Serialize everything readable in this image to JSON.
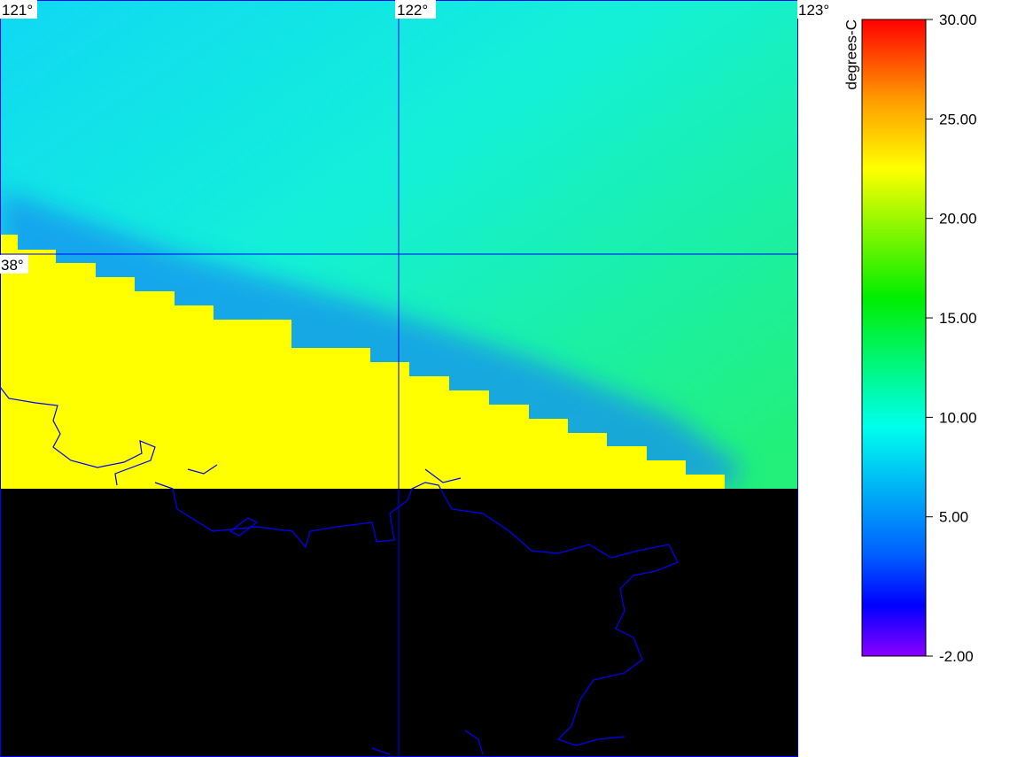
{
  "map": {
    "grid": {
      "lon_labels": [
        "121°",
        "122°",
        "123°"
      ],
      "lat_labels": [
        "38°"
      ]
    },
    "colorbar": {
      "label": "degrees-C",
      "lim": [
        -2,
        30
      ],
      "ticks": [
        {
          "value": 30,
          "label": "30.00"
        },
        {
          "value": 25,
          "label": "25.00"
        },
        {
          "value": 20,
          "label": "20.00"
        },
        {
          "value": 15,
          "label": "15.00"
        },
        {
          "value": 10,
          "label": "10.00"
        },
        {
          "value": 5,
          "label": "5.00"
        },
        {
          "value": -2,
          "label": "-2.00"
        }
      ]
    }
  }
}
